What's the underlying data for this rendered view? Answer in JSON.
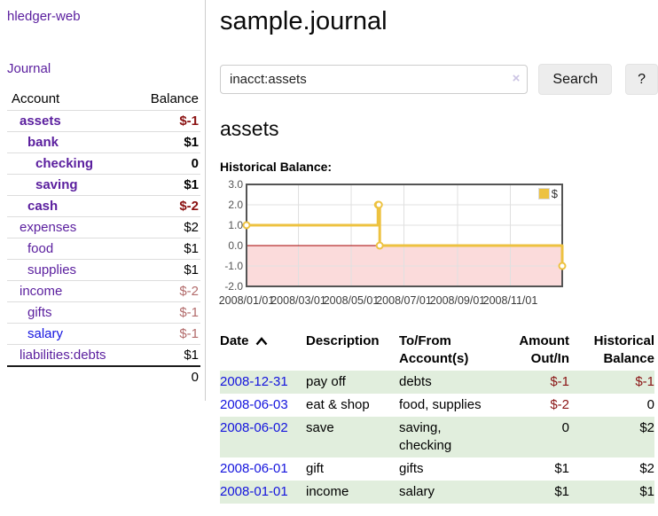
{
  "app": {
    "brand": "hledger-web",
    "nav_journal": "Journal"
  },
  "sidebar": {
    "account_header": "Account",
    "balance_header": "Balance",
    "accounts": [
      {
        "name": "assets",
        "level": 1,
        "bold": true,
        "balance": "$-1",
        "balance_style": "neg-strong"
      },
      {
        "name": "bank",
        "level": 2,
        "bold": true,
        "balance": "$1",
        "balance_style": "pos"
      },
      {
        "name": "checking",
        "level": 3,
        "bold": true,
        "balance": "0",
        "balance_style": "pos"
      },
      {
        "name": "saving",
        "level": 3,
        "bold": true,
        "balance": "$1",
        "balance_style": "pos"
      },
      {
        "name": "cash",
        "level": 2,
        "bold": true,
        "balance": "$-2",
        "balance_style": "neg-strong"
      },
      {
        "name": "expenses",
        "level": 1,
        "bold": false,
        "balance": "$2",
        "balance_style": "pos"
      },
      {
        "name": "food",
        "level": 2,
        "bold": false,
        "balance": "$1",
        "balance_style": "pos"
      },
      {
        "name": "supplies",
        "level": 2,
        "bold": false,
        "balance": "$1",
        "balance_style": "pos"
      },
      {
        "name": "income",
        "level": 1,
        "bold": false,
        "balance": "$-2",
        "balance_style": "neg-soft"
      },
      {
        "name": "gifts",
        "level": 2,
        "bold": false,
        "balance": "$-1",
        "balance_style": "neg-soft"
      },
      {
        "name": "salary",
        "level": 2,
        "bold": false,
        "balance": "$-1",
        "balance_style": "neg-soft",
        "link_color": "blue"
      },
      {
        "name": "liabilities:debts",
        "level": 1,
        "bold": false,
        "balance": "$1",
        "balance_style": "pos"
      }
    ],
    "total": "0"
  },
  "header": {
    "title": "sample.journal"
  },
  "search": {
    "value": "inacct:assets",
    "clear_icon": "×",
    "button_label": "Search",
    "help_label": "?"
  },
  "account_page": {
    "heading": "assets",
    "chart_label": "Historical Balance:"
  },
  "chart_data": {
    "type": "line",
    "title": "Historical Balance",
    "step": true,
    "series": [
      {
        "name": "$",
        "color": "#edc240",
        "points": [
          [
            "2008-01-01",
            1
          ],
          [
            "2008-06-01",
            2
          ],
          [
            "2008-06-02",
            2
          ],
          [
            "2008-06-03",
            0
          ],
          [
            "2008-12-31",
            -1
          ]
        ]
      }
    ],
    "x_ticks": [
      "2008/01/01",
      "2008/03/01",
      "2008/05/01",
      "2008/07/01",
      "2008/09/01",
      "2008/11/01"
    ],
    "y_ticks": [
      "3.0",
      "2.0",
      "1.0",
      "0.0",
      "-1.0",
      "-2.0"
    ],
    "xlim": [
      "2008-01-01",
      "2008-12-31"
    ],
    "ylim": [
      -2,
      3
    ],
    "grid": true,
    "legend_position": "top-right",
    "negative_region_color": "#fbdbdb",
    "zero_line_color": "#a40000",
    "grid_color": "#e0e0e0",
    "border_color": "#545454"
  },
  "register": {
    "headers": {
      "date": "Date",
      "description": "Description",
      "accounts": "To/From Account(s)",
      "amount": "Amount Out/In",
      "balance": "Historical Balance"
    },
    "rows": [
      {
        "date": "2008-12-31",
        "description": "pay off",
        "accounts": "debts",
        "amount": "$-1",
        "amount_neg": true,
        "balance": "$-1",
        "balance_neg": true,
        "shaded": true
      },
      {
        "date": "2008-06-03",
        "description": "eat & shop",
        "accounts": "food, supplies",
        "amount": "$-2",
        "amount_neg": true,
        "balance": "0",
        "balance_neg": false,
        "shaded": false
      },
      {
        "date": "2008-06-02",
        "description": "save",
        "accounts": "saving, checking",
        "amount": "0",
        "amount_neg": false,
        "balance": "$2",
        "balance_neg": false,
        "shaded": true
      },
      {
        "date": "2008-06-01",
        "description": "gift",
        "accounts": "gifts",
        "amount": "$1",
        "amount_neg": false,
        "balance": "$2",
        "balance_neg": false,
        "shaded": false
      },
      {
        "date": "2008-01-01",
        "description": "income",
        "accounts": "salary",
        "amount": "$1",
        "amount_neg": false,
        "balance": "$1",
        "balance_neg": false,
        "shaded": true
      }
    ]
  }
}
